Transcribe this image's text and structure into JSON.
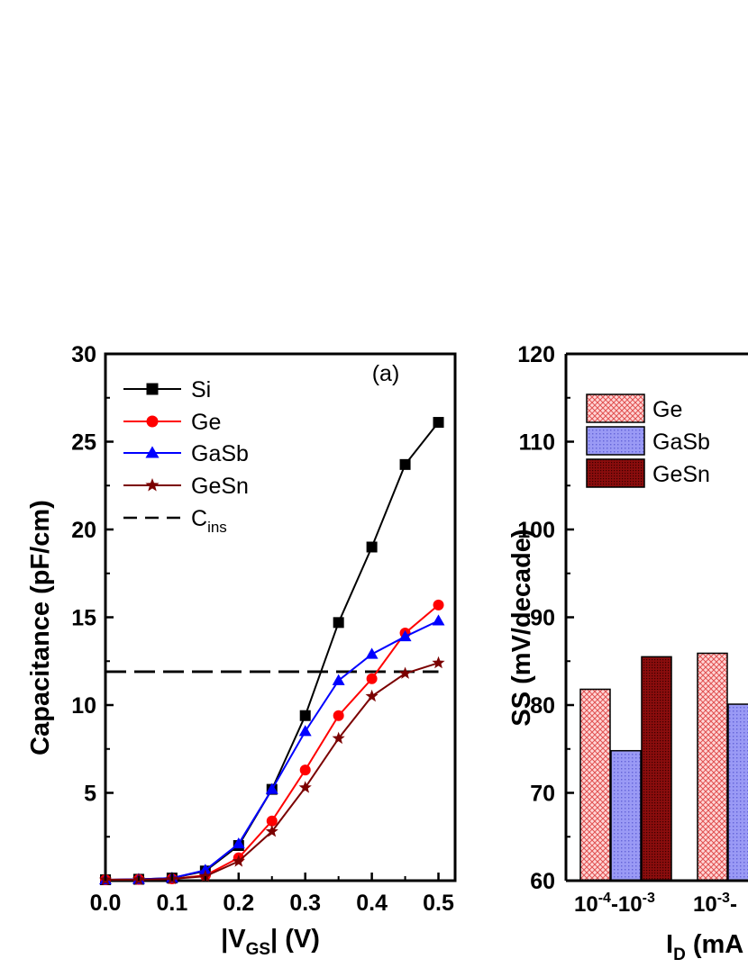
{
  "chart_data": [
    {
      "type": "line",
      "panel_label": "(a)",
      "xlabel": "|V",
      "xlabel_sub": "GS",
      "xlabel_suffix": "| (V)",
      "ylabel": "Capacitance (pF/cm)",
      "xlim": [
        0.0,
        0.525
      ],
      "ylim": [
        0,
        30
      ],
      "xticks": [
        0.0,
        0.1,
        0.2,
        0.3,
        0.4,
        0.5
      ],
      "xtick_labels": [
        "0.0",
        "0.1",
        "0.2",
        "0.3",
        "0.4",
        "0.5"
      ],
      "yticks": [
        5,
        10,
        15,
        20,
        25,
        30
      ],
      "ytick_labels": [
        "5",
        "10",
        "15",
        "20",
        "25",
        "30"
      ],
      "x": [
        0.0,
        0.05,
        0.1,
        0.15,
        0.2,
        0.25,
        0.3,
        0.35,
        0.4,
        0.45,
        0.5
      ],
      "series": [
        {
          "name": "Si",
          "color": "#000000",
          "marker": "square",
          "values": [
            0.05,
            0.08,
            0.15,
            0.55,
            2.0,
            5.2,
            9.4,
            14.7,
            19.0,
            23.7,
            26.1
          ]
        },
        {
          "name": "Ge",
          "color": "#ff0000",
          "marker": "circle",
          "values": [
            0.05,
            0.07,
            0.1,
            0.3,
            1.3,
            3.4,
            6.3,
            9.4,
            11.5,
            14.1,
            15.7
          ]
        },
        {
          "name": "GaSb",
          "color": "#0000ff",
          "marker": "triangle",
          "values": [
            0.05,
            0.08,
            0.15,
            0.6,
            2.1,
            5.2,
            8.5,
            11.4,
            12.9,
            13.9,
            14.8
          ]
        },
        {
          "name": "GeSn",
          "color": "#7b0000",
          "marker": "star",
          "values": [
            0.05,
            0.06,
            0.1,
            0.25,
            1.1,
            2.8,
            5.3,
            8.1,
            10.5,
            11.8,
            12.4
          ]
        }
      ],
      "reference_line": {
        "name": "C",
        "name_sub": "ins",
        "value": 11.9,
        "style": "dashed",
        "color": "#000000"
      },
      "legend": "top-left"
    },
    {
      "type": "bar",
      "ylabel": "SS (mV/decade)",
      "xlabel": "I",
      "xlabel_sub": "D",
      "xlabel_suffix": " (mA",
      "ylim": [
        60,
        120
      ],
      "yticks": [
        60,
        70,
        80,
        90,
        100,
        110,
        120
      ],
      "ytick_labels": [
        "60",
        "70",
        "80",
        "90",
        "100",
        "110",
        "120"
      ],
      "categories": [
        {
          "parts": [
            [
              "10",
              ""
            ],
            [
              "-4",
              "sup"
            ],
            [
              "-10",
              ""
            ],
            [
              "-3",
              "sup"
            ]
          ]
        },
        {
          "parts": [
            [
              "10",
              ""
            ],
            [
              "-3",
              "sup"
            ],
            [
              "-",
              ""
            ]
          ]
        }
      ],
      "series": [
        {
          "name": "Ge",
          "fill": "#ffd6d6",
          "pattern": "crosshatch",
          "pattern_color": "#e05050",
          "values": [
            81.8,
            85.9
          ]
        },
        {
          "name": "GaSb",
          "fill": "#9a9af5",
          "pattern": "dots",
          "pattern_color": "#6464d8",
          "values": [
            74.8,
            80.1
          ]
        },
        {
          "name": "GeSn",
          "fill": "#8a0d0d",
          "pattern": "dense",
          "pattern_color": "#3a0000",
          "values": [
            85.5,
            null
          ]
        }
      ],
      "legend": "top-left"
    }
  ]
}
